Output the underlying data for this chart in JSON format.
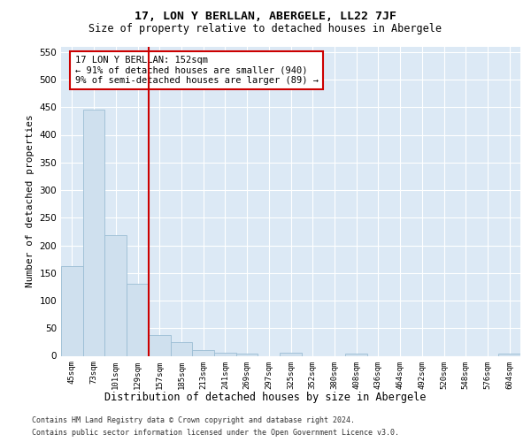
{
  "title": "17, LON Y BERLLAN, ABERGELE, LL22 7JF",
  "subtitle": "Size of property relative to detached houses in Abergele",
  "xlabel": "Distribution of detached houses by size in Abergele",
  "ylabel": "Number of detached properties",
  "bin_labels": [
    "45sqm",
    "73sqm",
    "101sqm",
    "129sqm",
    "157sqm",
    "185sqm",
    "213sqm",
    "241sqm",
    "269sqm",
    "297sqm",
    "325sqm",
    "352sqm",
    "380sqm",
    "408sqm",
    "436sqm",
    "464sqm",
    "492sqm",
    "520sqm",
    "548sqm",
    "576sqm",
    "604sqm"
  ],
  "bar_heights": [
    163,
    445,
    219,
    130,
    37,
    25,
    10,
    5,
    4,
    0,
    5,
    0,
    0,
    4,
    0,
    0,
    0,
    0,
    0,
    0,
    4
  ],
  "bar_color": "#cfe0ee",
  "bar_edge_color": "#9bbdd4",
  "vline_color": "#cc0000",
  "annotation_title": "17 LON Y BERLLAN: 152sqm",
  "annotation_line1": "← 91% of detached houses are smaller (940)",
  "annotation_line2": "9% of semi-detached houses are larger (89) →",
  "annotation_box_color": "#cc0000",
  "ylim": [
    0,
    560
  ],
  "yticks": [
    0,
    50,
    100,
    150,
    200,
    250,
    300,
    350,
    400,
    450,
    500,
    550
  ],
  "footer1": "Contains HM Land Registry data © Crown copyright and database right 2024.",
  "footer2": "Contains public sector information licensed under the Open Government Licence v3.0.",
  "plot_bg_color": "#dce9f5"
}
